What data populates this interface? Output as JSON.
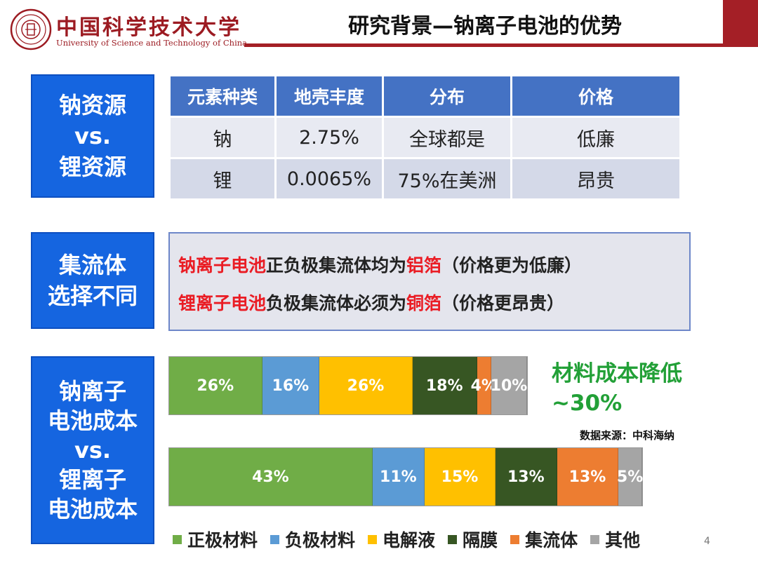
{
  "header": {
    "university_cn": "中国科学技术大学",
    "university_en": "University of Science and Technology of China",
    "title": "研究背景—钠离子电池的优势"
  },
  "sections": {
    "resource": "钠资源\nvs.\n锂资源",
    "collector": "集流体\n选择不同",
    "cost": "钠离子\n电池成本\nvs.\n锂离子\n电池成本"
  },
  "table": {
    "headers": [
      "元素种类",
      "地壳丰度",
      "分布",
      "价格"
    ],
    "rows": [
      [
        "钠",
        "2.75%",
        "全球都是",
        "低廉"
      ],
      [
        "锂",
        "0.0065%",
        "75%在美洲",
        "昂贵"
      ]
    ]
  },
  "collector": {
    "line1": {
      "highlight": "钠离子电池",
      "mid": "正负极集流体均为",
      "highlight2": "铝箔",
      "tail": "（价格更为低廉）"
    },
    "line2": {
      "highlight": "锂离子电池",
      "mid": "负极集流体必须为",
      "highlight2": "铜箔",
      "tail": "（价格更昂贵）"
    }
  },
  "colors": {
    "section_blue": "#1565e0",
    "header_red": "#a41f26",
    "highlight_red": "#ea1c24",
    "savings_green": "#22a037"
  },
  "chart_data": {
    "type": "bar",
    "orientation": "horizontal-stacked",
    "categories": [
      "钠离子电池成本",
      "锂离子电池成本"
    ],
    "series": [
      {
        "name": "正极材料",
        "color": "#70ad47",
        "values": [
          26,
          43
        ],
        "labels": [
          "26%",
          "43%"
        ]
      },
      {
        "name": "负极材料",
        "color": "#5b9bd5",
        "values": [
          16,
          11
        ],
        "labels": [
          "16%",
          "11%"
        ]
      },
      {
        "name": "电解液",
        "color": "#ffc000",
        "values": [
          26,
          15
        ],
        "labels": [
          "26%",
          "15%"
        ]
      },
      {
        "name": "隔膜",
        "color": "#375623",
        "values": [
          18,
          13
        ],
        "labels": [
          "18%",
          "13%"
        ]
      },
      {
        "name": "集流体",
        "color": "#ed7d31",
        "values": [
          4,
          13
        ],
        "labels": [
          "4%",
          "13%"
        ]
      },
      {
        "name": "其他",
        "color": "#a5a5a5",
        "values": [
          10,
          5
        ],
        "labels": [
          "10%",
          "5%"
        ]
      }
    ],
    "bar_totals_relative": [
      0.7,
      1.0
    ],
    "legend": "bottom",
    "annotation": "材料成本降低\n~30%",
    "source": "数据来源：中科海纳"
  },
  "page_number": "4"
}
